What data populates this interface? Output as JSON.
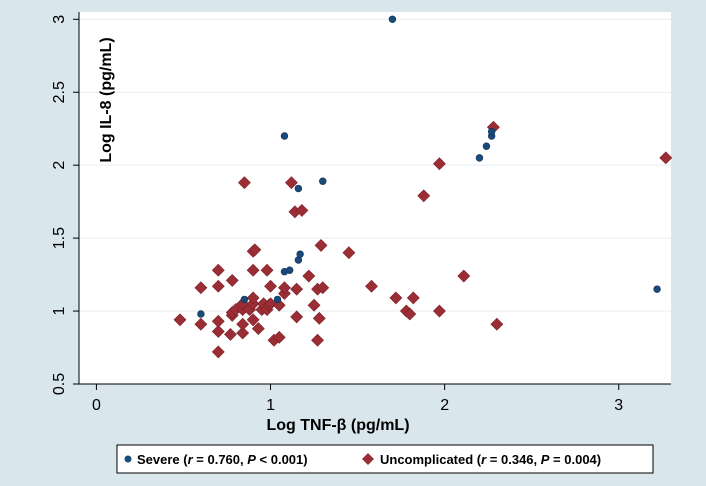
{
  "chart_data": {
    "type": "scatter",
    "xlabel": "Log TNF-β (pg/mL)",
    "ylabel": "Log IL-8 (pg/mL)",
    "xlim": [
      -0.1,
      3.3
    ],
    "ylim": [
      0.5,
      3.05
    ],
    "x_ticks": [
      "0",
      "1",
      "2",
      "3"
    ],
    "y_ticks": [
      "0.5",
      "1",
      "1.5",
      "2",
      "2.5",
      "3"
    ],
    "grid": "horizontal",
    "legend_position": "bottom",
    "colors": {
      "severe": "#1a4a78",
      "uncomplicated": "#9b2d35",
      "background": "#d9e6ec",
      "plot_area": "#ffffff"
    },
    "series": [
      {
        "name": "Severe",
        "legend": {
          "prefix": "Severe (",
          "r": "r",
          "r_val": " = 0.760, ",
          "p": "P",
          "p_val": " < 0.001)"
        },
        "marker": "circle",
        "points": [
          [
            0.6,
            0.98
          ],
          [
            0.85,
            1.08
          ],
          [
            1.04,
            1.08
          ],
          [
            1.08,
            1.27
          ],
          [
            1.11,
            1.28
          ],
          [
            1.16,
            1.35
          ],
          [
            1.17,
            1.39
          ],
          [
            1.16,
            1.84
          ],
          [
            1.08,
            2.2
          ],
          [
            1.3,
            1.89
          ],
          [
            1.7,
            3.0
          ],
          [
            2.2,
            2.05
          ],
          [
            2.24,
            2.13
          ],
          [
            2.27,
            2.2
          ],
          [
            2.27,
            2.23
          ],
          [
            3.22,
            1.15
          ]
        ]
      },
      {
        "name": "Uncomplicated",
        "legend": {
          "prefix": "Uncomplicated (",
          "r": "r",
          "r_val": " = 0.346, ",
          "p": "P",
          "p_val": " = 0.004)"
        },
        "marker": "diamond",
        "points": [
          [
            0.48,
            0.94
          ],
          [
            0.6,
            0.91
          ],
          [
            0.6,
            1.16
          ],
          [
            0.7,
            0.72
          ],
          [
            0.7,
            0.86
          ],
          [
            0.7,
            0.93
          ],
          [
            0.7,
            1.17
          ],
          [
            0.7,
            1.28
          ],
          [
            0.77,
            0.84
          ],
          [
            0.78,
            0.97
          ],
          [
            0.78,
            0.99
          ],
          [
            0.78,
            1.21
          ],
          [
            0.8,
            1.01
          ],
          [
            0.84,
            0.85
          ],
          [
            0.84,
            0.91
          ],
          [
            0.84,
            1.01
          ],
          [
            0.84,
            1.05
          ],
          [
            0.85,
            1.88
          ],
          [
            0.88,
            1.01
          ],
          [
            0.9,
            0.94
          ],
          [
            0.9,
            1.05
          ],
          [
            0.9,
            1.09
          ],
          [
            0.9,
            1.28
          ],
          [
            0.9,
            1.41
          ],
          [
            0.91,
            1.42
          ],
          [
            0.93,
            0.88
          ],
          [
            0.95,
            1.01
          ],
          [
            0.96,
            1.05
          ],
          [
            0.98,
            1.01
          ],
          [
            0.98,
            1.28
          ],
          [
            0.99,
            1.04
          ],
          [
            1.0,
            1.17
          ],
          [
            1.0,
            1.05
          ],
          [
            1.02,
            0.8
          ],
          [
            1.05,
            0.82
          ],
          [
            1.05,
            1.04
          ],
          [
            1.08,
            1.12
          ],
          [
            1.08,
            1.16
          ],
          [
            1.12,
            1.88
          ],
          [
            1.14,
            1.68
          ],
          [
            1.15,
            0.96
          ],
          [
            1.15,
            1.15
          ],
          [
            1.18,
            1.69
          ],
          [
            1.22,
            1.24
          ],
          [
            1.25,
            1.04
          ],
          [
            1.27,
            1.15
          ],
          [
            1.27,
            0.8
          ],
          [
            1.28,
            0.95
          ],
          [
            1.29,
            1.45
          ],
          [
            1.3,
            1.16
          ],
          [
            1.45,
            1.4
          ],
          [
            1.58,
            1.17
          ],
          [
            1.72,
            1.09
          ],
          [
            1.78,
            1.0
          ],
          [
            1.8,
            0.98
          ],
          [
            1.82,
            1.09
          ],
          [
            1.88,
            1.79
          ],
          [
            1.97,
            2.01
          ],
          [
            1.97,
            1.0
          ],
          [
            2.11,
            1.24
          ],
          [
            2.28,
            2.26
          ],
          [
            2.3,
            0.91
          ],
          [
            3.27,
            2.05
          ]
        ]
      }
    ]
  }
}
